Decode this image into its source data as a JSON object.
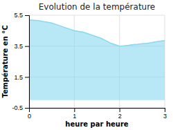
{
  "chart_data": {
    "type": "area",
    "title": "Evolution de la température",
    "xlabel": "heure par heure",
    "ylabel": "Température en °C",
    "x": [
      0,
      0.1,
      0.2,
      0.3,
      0.4,
      0.5,
      0.6,
      0.7,
      0.8,
      0.9,
      1.0,
      1.1,
      1.2,
      1.3,
      1.4,
      1.5,
      1.6,
      1.7,
      1.8,
      1.9,
      2.0,
      2.1,
      2.2,
      2.3,
      2.4,
      2.5,
      2.6,
      2.7,
      2.8,
      2.9,
      3.0
    ],
    "values": [
      5.2,
      5.18,
      5.15,
      5.1,
      5.05,
      5.0,
      4.9,
      4.8,
      4.7,
      4.6,
      4.5,
      4.45,
      4.4,
      4.3,
      4.2,
      4.1,
      4.0,
      3.85,
      3.7,
      3.6,
      3.5,
      3.52,
      3.55,
      3.6,
      3.62,
      3.65,
      3.68,
      3.72,
      3.78,
      3.82,
      3.85
    ],
    "baseline": 0,
    "xlim": [
      0,
      3
    ],
    "ylim": [
      -0.5,
      5.5
    ],
    "xticks": [
      0,
      1,
      2,
      3
    ],
    "yticks": [
      -0.5,
      1.5,
      3.5,
      5.5
    ],
    "color": "#88d8ee",
    "grid": true
  }
}
